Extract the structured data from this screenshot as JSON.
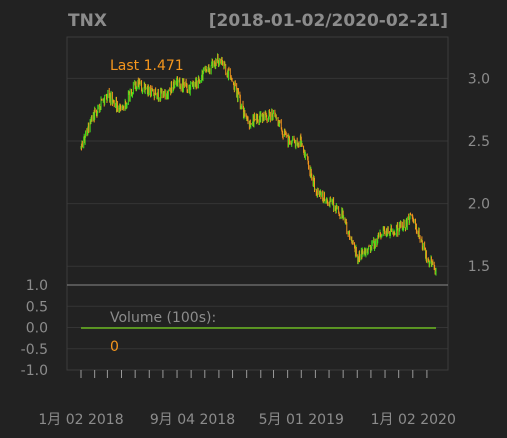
{
  "header": {
    "symbol": "TNX",
    "date_range": "[2018-01-02/2020-02-21]"
  },
  "colors": {
    "background": "#222222",
    "up": "#44e01c",
    "down": "#f5961d",
    "text": "#8c8c8c",
    "volume_line": "#6ab820"
  },
  "chart_data": [
    {
      "type": "line",
      "style": "candlestick",
      "title": "TNX",
      "date_range": "[2018-01-02/2020-02-21]",
      "last_label": "Last 1.471",
      "ylim": [
        1.35,
        3.33
      ],
      "y_ticks": [
        3.0,
        2.5,
        2.0,
        1.5
      ],
      "y_tick_labels": [
        "3.0",
        "2.5",
        "2.0",
        "1.5"
      ],
      "grid": true,
      "x": [
        "2018-01-02",
        "2018-02-01",
        "2018-03-01",
        "2018-04-02",
        "2018-05-01",
        "2018-06-01",
        "2018-07-02",
        "2018-08-01",
        "2018-09-04",
        "2018-10-01",
        "2018-11-01",
        "2018-12-03",
        "2019-01-02",
        "2019-02-01",
        "2019-03-01",
        "2019-04-01",
        "2019-05-01",
        "2019-06-03",
        "2019-07-01",
        "2019-08-01",
        "2019-09-03",
        "2019-10-01",
        "2019-11-01",
        "2019-12-02",
        "2020-01-02",
        "2020-02-03",
        "2020-02-21"
      ],
      "y": [
        2.45,
        2.72,
        2.87,
        2.74,
        2.95,
        2.9,
        2.86,
        2.96,
        2.92,
        3.06,
        3.14,
        2.97,
        2.65,
        2.68,
        2.72,
        2.5,
        2.5,
        2.1,
        2.03,
        1.9,
        1.56,
        1.66,
        1.78,
        1.8,
        1.9,
        1.55,
        1.471
      ]
    },
    {
      "type": "bar",
      "title": "Volume (100s):",
      "last_label": "0",
      "ylim": [
        -1.0,
        1.0
      ],
      "y_ticks": [
        1.0,
        0.5,
        0.0,
        -0.5,
        -1.0
      ],
      "y_tick_labels": [
        "1.0",
        "0.5",
        "0.0",
        "-0.5",
        "-1.0"
      ],
      "x_tick_labels": [
        "1月 02 2018",
        "9月 04 2018",
        "5月 01 2019",
        "1月 02 2020"
      ],
      "values": [
        0
      ]
    }
  ]
}
